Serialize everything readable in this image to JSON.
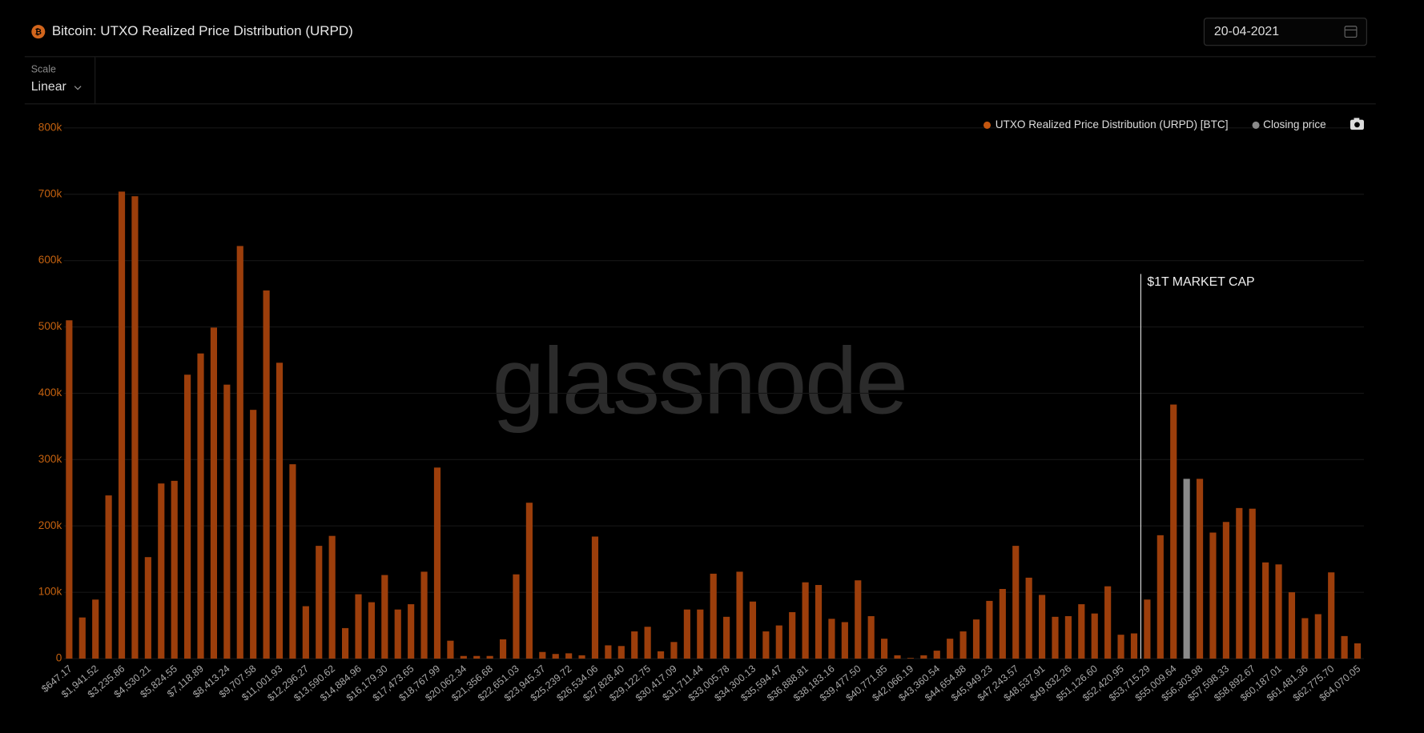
{
  "header": {
    "title": "Bitcoin: UTXO Realized Price Distribution (URPD)",
    "date": "20-04-2021"
  },
  "controls": {
    "scale_label": "Scale",
    "scale_value": "Linear"
  },
  "chart_data": {
    "type": "bar",
    "watermark": "glassnode",
    "categories": [
      "$647.17",
      null,
      "$1,941.52",
      null,
      "$3,235.86",
      null,
      "$4,530.21",
      null,
      "$5,824.55",
      null,
      "$7,118.89",
      null,
      "$8,413.24",
      null,
      "$9,707.58",
      null,
      "$11,001.93",
      null,
      "$12,296.27",
      null,
      "$13,590.62",
      null,
      "$14,884.96",
      null,
      "$16,179.30",
      null,
      "$17,473.65",
      null,
      "$18,767.99",
      null,
      "$20,062.34",
      null,
      "$21,356.68",
      null,
      "$22,651.03",
      null,
      "$23,945.37",
      null,
      "$25,239.72",
      null,
      "$26,534.06",
      null,
      "$27,828.40",
      null,
      "$29,122.75",
      null,
      "$30,417.09",
      null,
      "$31,711.44",
      null,
      "$33,005.78",
      null,
      "$34,300.13",
      null,
      "$35,594.47",
      null,
      "$36,888.81",
      null,
      "$38,183.16",
      null,
      "$39,477.50",
      null,
      "$40,771.85",
      null,
      "$42,066.19",
      null,
      "$43,360.54",
      null,
      "$44,654.88",
      null,
      "$45,949.23",
      null,
      "$47,243.57",
      null,
      "$48,537.91",
      null,
      "$49,832.26",
      null,
      "$51,126.60",
      null,
      "$52,420.95",
      null,
      "$53,715.29",
      null,
      "$55,009.64",
      null,
      "$56,303.98",
      null,
      "$57,598.33",
      null,
      "$58,892.67",
      null,
      "$60,187.01",
      null,
      "$61,481.36",
      null,
      "$62,775.70",
      null,
      "$64,070.05"
    ],
    "series": [
      {
        "name": "UTXO Realized Price Distribution (URPD) [BTC]",
        "color": "#9c3e0b",
        "values": [
          510000,
          62000,
          89000,
          246000,
          704000,
          697000,
          153000,
          264000,
          268000,
          428000,
          460000,
          499000,
          413000,
          622000,
          375000,
          555000,
          446000,
          293000,
          79000,
          170000,
          185000,
          46000,
          97000,
          85000,
          126000,
          74000,
          82000,
          131000,
          288000,
          27000,
          4000,
          4000,
          4000,
          29000,
          127000,
          235000,
          10000,
          7000,
          8000,
          5000,
          184000,
          20000,
          19000,
          41000,
          48000,
          11000,
          25000,
          74000,
          74000,
          128000,
          63000,
          131000,
          86000,
          41000,
          50000,
          70000,
          115000,
          111000,
          60000,
          55000,
          118000,
          64000,
          30000,
          5000,
          1000,
          5000,
          12000,
          30000,
          41000,
          59000,
          87000,
          105000,
          170000,
          122000,
          96000,
          63000,
          64000,
          82000,
          68000,
          109000,
          36000,
          38000,
          89000,
          186000,
          383000,
          null,
          271000,
          190000,
          206000,
          227000,
          226000,
          145000,
          142000,
          100000,
          61000,
          67000,
          130000,
          34000,
          23000
        ]
      },
      {
        "name": "Closing price",
        "color": "#8a8a8a",
        "values": [
          null,
          null,
          null,
          null,
          null,
          null,
          null,
          null,
          null,
          null,
          null,
          null,
          null,
          null,
          null,
          null,
          null,
          null,
          null,
          null,
          null,
          null,
          null,
          null,
          null,
          null,
          null,
          null,
          null,
          null,
          null,
          null,
          null,
          null,
          null,
          null,
          null,
          null,
          null,
          null,
          null,
          null,
          null,
          null,
          null,
          null,
          null,
          null,
          null,
          null,
          null,
          null,
          null,
          null,
          null,
          null,
          null,
          null,
          null,
          null,
          null,
          null,
          null,
          null,
          null,
          null,
          null,
          null,
          null,
          null,
          null,
          null,
          null,
          null,
          null,
          null,
          null,
          null,
          null,
          null,
          null,
          null,
          null,
          null,
          null,
          271000,
          null,
          null,
          null,
          null,
          null,
          null,
          null,
          null,
          null,
          null,
          null,
          null,
          null
        ]
      }
    ],
    "ylim": [
      0,
      800000
    ],
    "yticks": [
      0,
      {
        "value": 100000,
        "label": "100k"
      },
      {
        "value": 200000,
        "label": "200k"
      },
      {
        "value": 300000,
        "label": "300k"
      },
      {
        "value": 400000,
        "label": "400k"
      },
      {
        "value": 500000,
        "label": "500k"
      },
      {
        "value": 600000,
        "label": "600k"
      },
      {
        "value": 700000,
        "label": "700k"
      },
      {
        "value": 800000,
        "label": "800k"
      }
    ],
    "grid": true,
    "annotation": {
      "text": "$1T MARKET CAP",
      "x": 53400
    }
  }
}
